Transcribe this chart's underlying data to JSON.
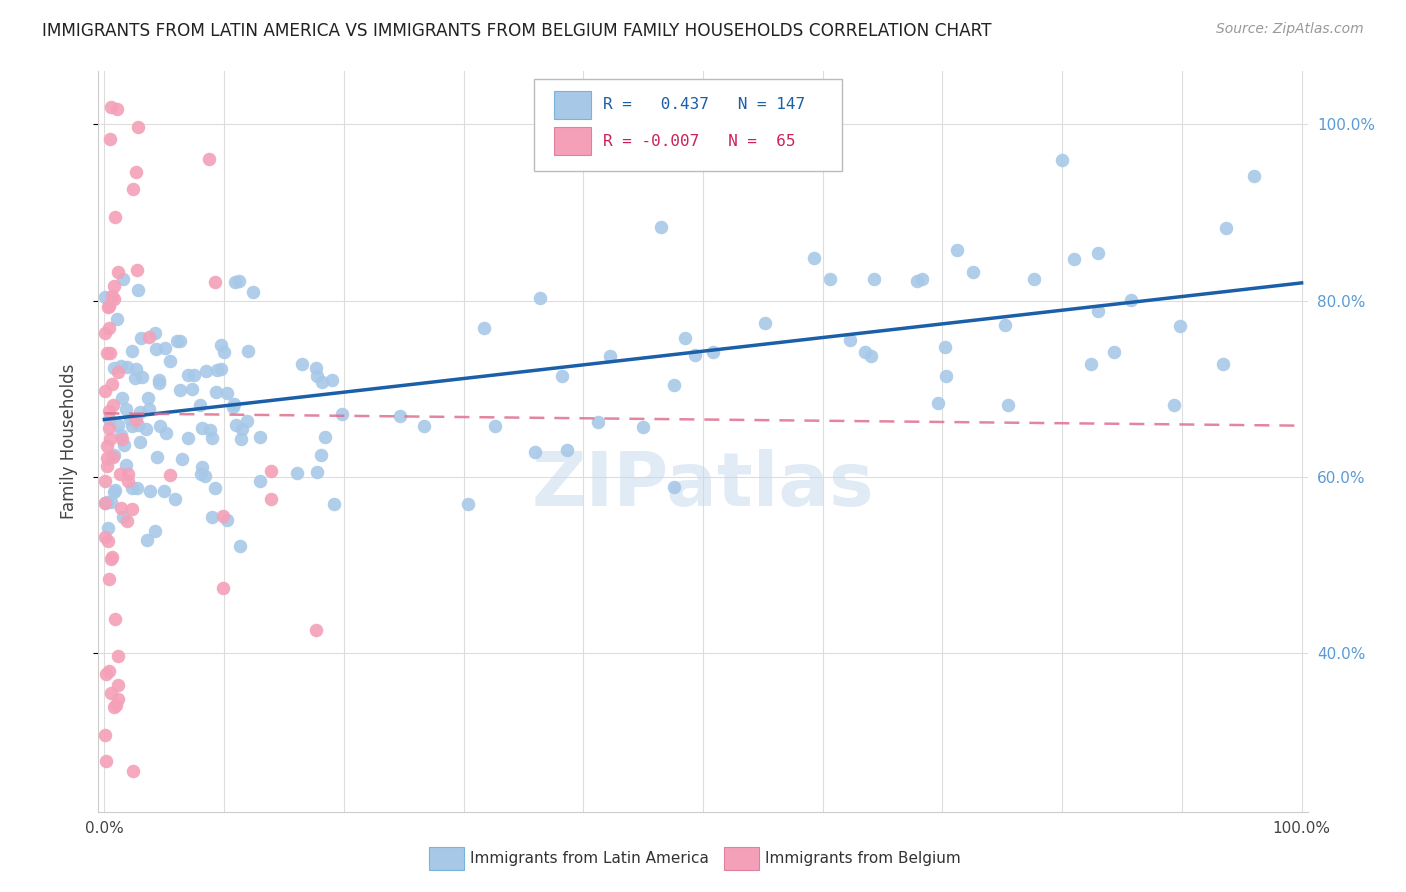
{
  "title": "IMMIGRANTS FROM LATIN AMERICA VS IMMIGRANTS FROM BELGIUM FAMILY HOUSEHOLDS CORRELATION CHART",
  "source": "Source: ZipAtlas.com",
  "ylabel": "Family Households",
  "right_yticks": [
    "40.0%",
    "60.0%",
    "80.0%",
    "100.0%"
  ],
  "right_ytick_vals": [
    0.4,
    0.6,
    0.8,
    1.0
  ],
  "blue_R": 0.437,
  "blue_N": 147,
  "pink_R": -0.007,
  "pink_N": 65,
  "scatter_color_blue": "#a8c8e8",
  "scatter_color_pink": "#f4a0b8",
  "line_color_blue": "#1a5fa8",
  "line_color_pink": "#e07090",
  "watermark": "ZIPatlas",
  "legend_label_blue": "Immigrants from Latin America",
  "legend_label_pink": "Immigrants from Belgium",
  "xlim": [
    -0.005,
    1.005
  ],
  "ylim": [
    0.22,
    1.06
  ],
  "blue_line_x0": 0.0,
  "blue_line_x1": 1.0,
  "blue_line_y0": 0.665,
  "blue_line_y1": 0.82,
  "pink_line_x0": 0.0,
  "pink_line_x1": 1.0,
  "pink_line_y0": 0.672,
  "pink_line_y1": 0.658
}
